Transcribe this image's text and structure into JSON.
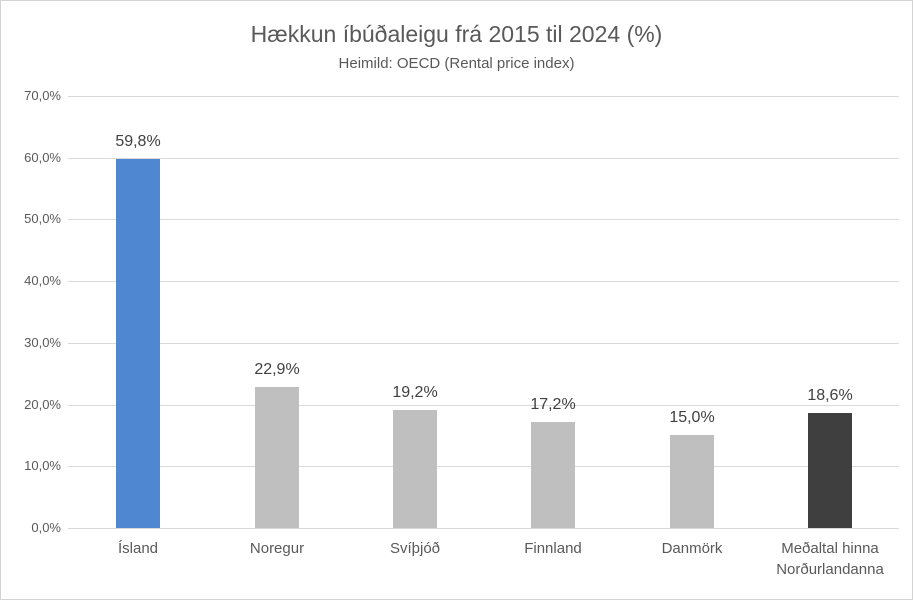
{
  "chart_data": {
    "type": "bar",
    "title": "Hækkun íbúðaleigu frá 2015 til 2024 (%)",
    "subtitle": "Heimild: OECD (Rental price index)",
    "categories": [
      "Ísland",
      "Noregur",
      "Svíþjóð",
      "Finnland",
      "Danmörk",
      "Meðaltal hinna Norðurlandanna"
    ],
    "values": [
      59.8,
      22.9,
      19.2,
      17.2,
      15.0,
      18.6
    ],
    "value_labels": [
      "59,8%",
      "22,9%",
      "19,2%",
      "17,2%",
      "15,0%",
      "18,6%"
    ],
    "bar_colors": [
      "#4f87d0",
      "#bfbfbf",
      "#bfbfbf",
      "#bfbfbf",
      "#bfbfbf",
      "#3f3f3f"
    ],
    "xlabel": "",
    "ylabel": "",
    "ylim": [
      0,
      70
    ],
    "ytick_step": 10,
    "ytick_labels": [
      "0,0%",
      "10,0%",
      "20,0%",
      "30,0%",
      "40,0%",
      "50,0%",
      "60,0%",
      "70,0%"
    ],
    "grid": true,
    "legend": false,
    "colors": {
      "grid": "#d9d9d9",
      "axis_text": "#595959",
      "value_text": "#404040",
      "background": "#ffffff",
      "border": "#d3d3d3"
    }
  }
}
